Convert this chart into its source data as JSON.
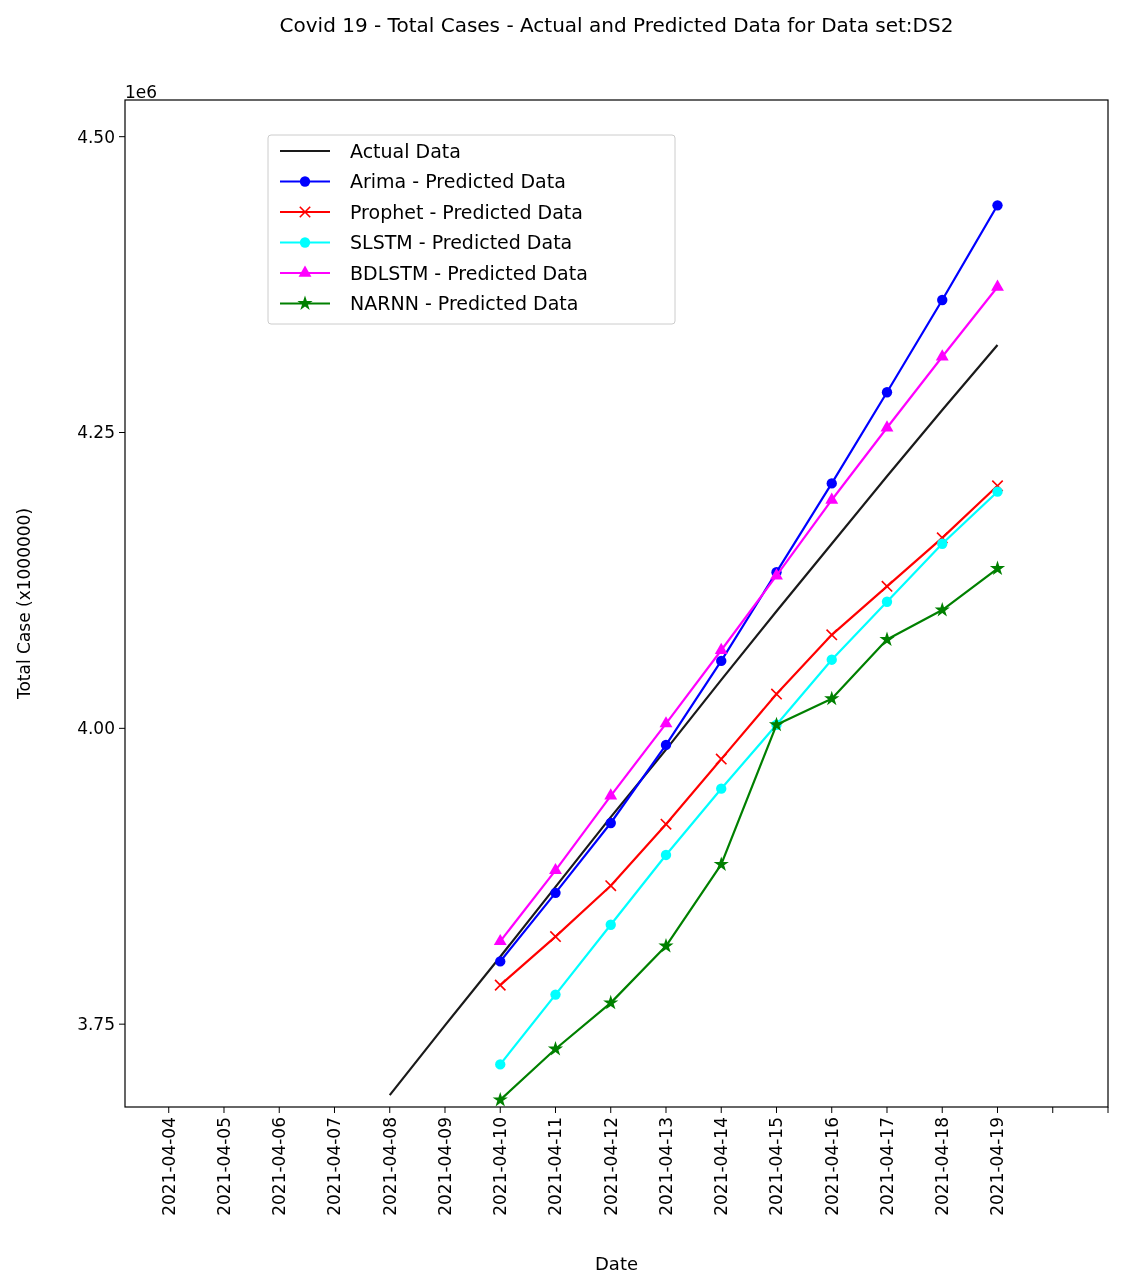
{
  "chart_data": {
    "type": "line",
    "title": "Covid 19 - Total Cases - Actual and Predicted Data for Data set:DS2",
    "xlabel": "Date",
    "ylabel": "Total Case (x1000000)",
    "annotations": [
      "1e6"
    ],
    "xlim": [
      "2021-04-03T05:00",
      "2021-04-21"
    ],
    "ylim": [
      3.68,
      4.531
    ],
    "xticks": [
      {
        "value": "2021-04-04",
        "label": "2021-04-04"
      },
      {
        "value": "2021-04-05",
        "label": "2021-04-05"
      },
      {
        "value": "2021-04-06",
        "label": "2021-04-06"
      },
      {
        "value": "2021-04-07",
        "label": "2021-04-07"
      },
      {
        "value": "2021-04-08",
        "label": "2021-04-08"
      },
      {
        "value": "2021-04-09",
        "label": "2021-04-09"
      },
      {
        "value": "2021-04-10",
        "label": "2021-04-10"
      },
      {
        "value": "2021-04-11",
        "label": "2021-04-11"
      },
      {
        "value": "2021-04-12",
        "label": "2021-04-12"
      },
      {
        "value": "2021-04-13",
        "label": "2021-04-13"
      },
      {
        "value": "2021-04-14",
        "label": "2021-04-14"
      },
      {
        "value": "2021-04-15",
        "label": "2021-04-15"
      },
      {
        "value": "2021-04-16",
        "label": "2021-04-16"
      },
      {
        "value": "2021-04-17",
        "label": "2021-04-17"
      },
      {
        "value": "2021-04-18",
        "label": "2021-04-18"
      },
      {
        "value": "2021-04-19",
        "label": "2021-04-19"
      },
      {
        "value": "2021-04-20",
        "label": null
      },
      {
        "value": "2021-04-21",
        "label": null
      }
    ],
    "yticks": [
      {
        "value": 3.75,
        "label": "3.75"
      },
      {
        "value": 4.0,
        "label": "4.00"
      },
      {
        "value": 4.25,
        "label": "4.25"
      },
      {
        "value": 4.5,
        "label": "4.50"
      }
    ],
    "grid": false,
    "legend": "top left",
    "line_style": "solid",
    "series": [
      {
        "name": "Actual Data",
        "color": "#1a1a1a",
        "marker": "none",
        "x": [
          "2021-04-08",
          "2021-04-09",
          "2021-04-10",
          "2021-04-11",
          "2021-04-12",
          "2021-04-13",
          "2021-04-14",
          "2021-04-15",
          "2021-04-16",
          "2021-04-17",
          "2021-04-18",
          "2021-04-19"
        ],
        "values": [
          3.69,
          3.749,
          3.807,
          3.866,
          3.925,
          3.982,
          4.041,
          4.099,
          4.156,
          4.213,
          4.269,
          4.324
        ]
      },
      {
        "name": "Arima - Predicted Data",
        "color": "#0000ff",
        "marker": "circle",
        "x": [
          "2021-04-10",
          "2021-04-11",
          "2021-04-12",
          "2021-04-13",
          "2021-04-14",
          "2021-04-15",
          "2021-04-16",
          "2021-04-17",
          "2021-04-18",
          "2021-04-19"
        ],
        "values": [
          3.803,
          3.861,
          3.92,
          3.986,
          4.057,
          4.132,
          4.207,
          4.284,
          4.362,
          4.442
        ]
      },
      {
        "name": "Prophet - Predicted Data",
        "color": "#ff0000",
        "marker": "cross",
        "x": [
          "2021-04-10",
          "2021-04-11",
          "2021-04-12",
          "2021-04-13",
          "2021-04-14",
          "2021-04-15",
          "2021-04-16",
          "2021-04-17",
          "2021-04-18",
          "2021-04-19"
        ],
        "values": [
          3.783,
          3.824,
          3.867,
          3.919,
          3.974,
          4.029,
          4.079,
          4.12,
          4.161,
          4.205
        ]
      },
      {
        "name": "SLSTM - Predicted Data",
        "color": "#00ffff",
        "marker": "circle",
        "x": [
          "2021-04-10",
          "2021-04-11",
          "2021-04-12",
          "2021-04-13",
          "2021-04-14",
          "2021-04-15",
          "2021-04-16",
          "2021-04-17",
          "2021-04-18",
          "2021-04-19"
        ],
        "values": [
          3.716,
          3.775,
          3.834,
          3.893,
          3.949,
          4.003,
          4.058,
          4.107,
          4.156,
          4.2
        ]
      },
      {
        "name": "BDLSTM - Predicted Data",
        "color": "#ff00ff",
        "marker": "triangle",
        "x": [
          "2021-04-10",
          "2021-04-11",
          "2021-04-12",
          "2021-04-13",
          "2021-04-14",
          "2021-04-15",
          "2021-04-16",
          "2021-04-17",
          "2021-04-18",
          "2021-04-19"
        ],
        "values": [
          3.82,
          3.88,
          3.943,
          4.004,
          4.066,
          4.129,
          4.193,
          4.254,
          4.314,
          4.373
        ]
      },
      {
        "name": "NARNN - Predicted Data",
        "color": "#008000",
        "marker": "star",
        "x": [
          "2021-04-10",
          "2021-04-11",
          "2021-04-12",
          "2021-04-13",
          "2021-04-14",
          "2021-04-15",
          "2021-04-16",
          "2021-04-17",
          "2021-04-18",
          "2021-04-19"
        ],
        "values": [
          3.686,
          3.729,
          3.768,
          3.816,
          3.885,
          4.003,
          4.025,
          4.075,
          4.1,
          4.135
        ]
      }
    ]
  }
}
